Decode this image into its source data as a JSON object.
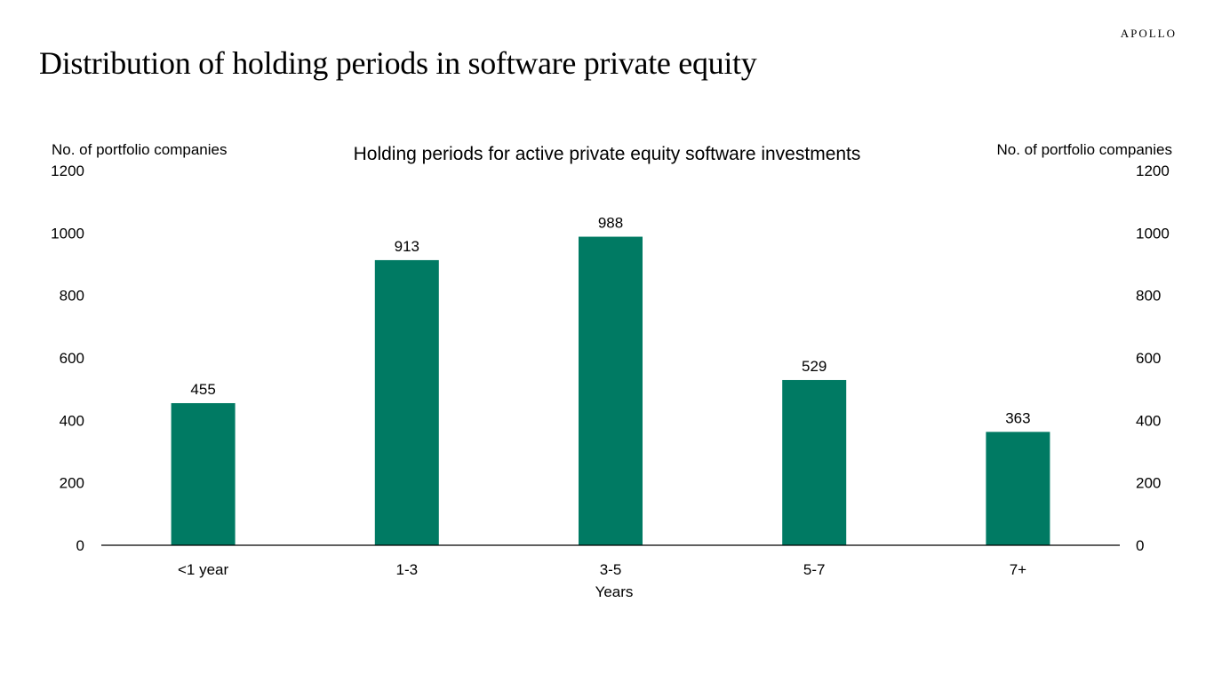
{
  "header": {
    "title": "Distribution of  holding periods in software private equity",
    "brand": "APOLLO"
  },
  "colors": {
    "bar": "#007A63",
    "axis": "#000000"
  },
  "chart_data": {
    "type": "bar",
    "title": "Holding periods for active private equity software investments",
    "xlabel": "Years",
    "ylabel_left": "No. of portfolio companies",
    "ylabel_right": "No. of portfolio companies",
    "categories": [
      "<1 year",
      "1-3",
      "3-5",
      "5-7",
      "7+"
    ],
    "values": [
      455,
      913,
      988,
      529,
      363
    ],
    "data_labels": [
      "455",
      "913",
      "988",
      "529",
      "363"
    ],
    "ylim": [
      0,
      1200
    ],
    "yticks": [
      0,
      200,
      400,
      600,
      800,
      1000,
      1200
    ],
    "ytick_labels": [
      "0",
      "200",
      "400",
      "600",
      "800",
      "1000",
      "1200"
    ],
    "grid": false,
    "legend": "none"
  }
}
